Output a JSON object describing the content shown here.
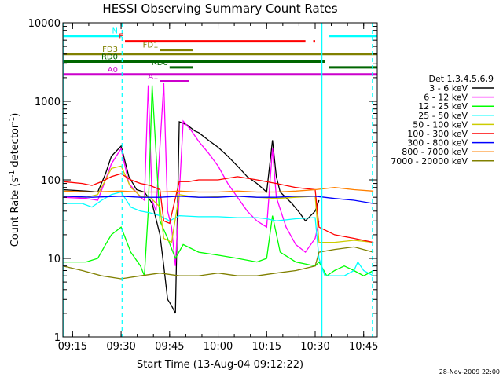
{
  "chart_data": {
    "type": "line",
    "title": "HESSI Observing Summary Count Rates",
    "xlabel": "Start Time (13-Aug-04 09:12:22)",
    "ylabel_main": "Count Rate (s",
    "ylabel_sup1": "-1",
    "ylabel_mid": " detector",
    "ylabel_sup2": "-1",
    "ylabel_end": ")",
    "x_range_minutes": [
      9.2,
      10.82
    ],
    "y_scale": "log",
    "ylim": [
      1,
      10000
    ],
    "x_ticks": [
      {
        "t": 9.25,
        "label": "09:15"
      },
      {
        "t": 9.5,
        "label": "09:30"
      },
      {
        "t": 9.75,
        "label": "09:45"
      },
      {
        "t": 10.0,
        "label": "10:00"
      },
      {
        "t": 10.25,
        "label": "10:15"
      },
      {
        "t": 10.5,
        "label": "10:30"
      },
      {
        "t": 10.75,
        "label": "10:45"
      }
    ],
    "y_ticks": [
      {
        "v": 1,
        "label": "1"
      },
      {
        "v": 10,
        "label": "10"
      },
      {
        "v": 100,
        "label": "100"
      },
      {
        "v": 1000,
        "label": "1000"
      },
      {
        "v": 10000,
        "label": "10000"
      }
    ],
    "legend_title": "Det 1,3,4,5,6,9",
    "legend_position": "right",
    "series": [
      {
        "name": "3 - 6 keV",
        "color": "#000000",
        "x": [
          9.2,
          9.32,
          9.38,
          9.42,
          9.45,
          9.5,
          9.54,
          9.58,
          9.62,
          9.64,
          9.66,
          9.7,
          9.72,
          9.74,
          9.76,
          9.78,
          9.8,
          9.84,
          9.88,
          9.9,
          9.95,
          10.0,
          10.05,
          10.1,
          10.15,
          10.2,
          10.25,
          10.28,
          10.3,
          10.32,
          10.38,
          10.42,
          10.45,
          10.5,
          10.52
        ],
        "y": [
          75,
          72,
          70,
          120,
          200,
          270,
          110,
          75,
          70,
          60,
          50,
          20,
          8,
          3,
          2.5,
          2,
          550,
          500,
          420,
          400,
          320,
          260,
          200,
          150,
          110,
          90,
          70,
          320,
          110,
          70,
          50,
          38,
          30,
          40,
          55
        ]
      },
      {
        "name": "6 - 12 keV",
        "color": "#ff00ff",
        "x": [
          9.2,
          9.32,
          9.38,
          9.42,
          9.45,
          9.5,
          9.54,
          9.6,
          9.62,
          9.64,
          9.66,
          9.68,
          9.72,
          9.74,
          9.76,
          9.78,
          9.82,
          9.86,
          9.9,
          9.95,
          10.0,
          10.05,
          10.1,
          10.15,
          10.2,
          10.25,
          10.28,
          10.3,
          10.35,
          10.4,
          10.45,
          10.5,
          10.52
        ],
        "y": [
          60,
          58,
          55,
          100,
          160,
          250,
          90,
          60,
          55,
          1600,
          55,
          40,
          1700,
          40,
          25,
          8,
          560,
          430,
          310,
          220,
          150,
          90,
          60,
          40,
          30,
          25,
          250,
          60,
          25,
          15,
          12,
          18,
          30
        ]
      },
      {
        "name": "12 - 25 keV",
        "color": "#00ff00",
        "x": [
          9.2,
          9.32,
          9.38,
          9.42,
          9.45,
          9.5,
          9.55,
          9.6,
          9.62,
          9.64,
          9.66,
          9.7,
          9.74,
          9.78,
          9.82,
          9.9,
          10.0,
          10.1,
          10.2,
          10.25,
          10.28,
          10.32,
          10.4,
          10.5,
          10.52,
          10.56,
          10.6,
          10.65,
          10.7,
          10.75,
          10.8
        ],
        "y": [
          9,
          9,
          10,
          15,
          20,
          25,
          12,
          8,
          6,
          40,
          1600,
          30,
          18,
          10,
          15,
          12,
          11,
          10,
          9,
          10,
          35,
          12,
          9,
          8,
          9,
          6,
          7,
          8,
          7,
          6,
          7
        ]
      },
      {
        "name": "25 - 50 keV",
        "color": "#00ffff",
        "x": [
          9.2,
          9.3,
          9.35,
          9.4,
          9.45,
          9.5,
          9.55,
          9.6,
          9.65,
          9.7,
          9.75,
          9.8,
          9.9,
          10.0,
          10.1,
          10.2,
          10.25,
          10.3,
          10.4,
          10.5,
          10.52,
          10.55,
          10.6,
          10.65,
          10.7,
          10.72,
          10.75,
          10.8
        ],
        "y": [
          50,
          50,
          45,
          55,
          65,
          70,
          45,
          40,
          38,
          35,
          30,
          35,
          34,
          34,
          33,
          33,
          32,
          30,
          32,
          33,
          10,
          6,
          6,
          6,
          7,
          9,
          7,
          6
        ]
      },
      {
        "name": "50 - 100 keV",
        "color": "#cccc00",
        "x": [
          9.2,
          9.32,
          9.38,
          9.42,
          9.45,
          9.5,
          9.55,
          9.6,
          9.65,
          9.7,
          9.72,
          9.76,
          9.8,
          9.85,
          9.9,
          10.0,
          10.1,
          10.2,
          10.3,
          10.4,
          10.5,
          10.52,
          10.6,
          10.7,
          10.8
        ],
        "y": [
          62,
          60,
          65,
          100,
          140,
          150,
          80,
          62,
          60,
          45,
          18,
          16,
          65,
          62,
          60,
          61,
          62,
          60,
          58,
          60,
          62,
          16,
          16,
          17,
          16
        ]
      },
      {
        "name": "100 - 300 keV",
        "color": "#ff0000",
        "x": [
          9.2,
          9.3,
          9.35,
          9.4,
          9.45,
          9.5,
          9.55,
          9.6,
          9.65,
          9.7,
          9.72,
          9.75,
          9.8,
          9.85,
          9.9,
          10.0,
          10.1,
          10.2,
          10.3,
          10.4,
          10.5,
          10.52,
          10.6,
          10.7,
          10.8
        ],
        "y": [
          95,
          90,
          85,
          95,
          110,
          120,
          100,
          90,
          85,
          75,
          30,
          28,
          95,
          95,
          100,
          100,
          110,
          100,
          90,
          80,
          75,
          25,
          20,
          18,
          16
        ]
      },
      {
        "name": "300 - 800 keV",
        "color": "#0000ff",
        "x": [
          9.2,
          9.35,
          9.5,
          9.6,
          9.7,
          9.8,
          9.9,
          10.0,
          10.1,
          10.2,
          10.3,
          10.4,
          10.5,
          10.6,
          10.7,
          10.8
        ],
        "y": [
          62,
          60,
          62,
          60,
          60,
          62,
          60,
          60,
          62,
          60,
          60,
          62,
          62,
          58,
          55,
          50
        ]
      },
      {
        "name": "800 - 7000 keV",
        "color": "#ff8000",
        "x": [
          9.2,
          9.35,
          9.5,
          9.6,
          9.7,
          9.8,
          9.9,
          10.0,
          10.1,
          10.2,
          10.3,
          10.4,
          10.5,
          10.6,
          10.7,
          10.8
        ],
        "y": [
          72,
          70,
          72,
          70,
          70,
          72,
          70,
          70,
          72,
          70,
          70,
          72,
          75,
          80,
          75,
          72
        ]
      },
      {
        "name": "7000 - 20000 keV",
        "color": "#808000",
        "x": [
          9.2,
          9.3,
          9.4,
          9.5,
          9.6,
          9.7,
          9.8,
          9.9,
          10.0,
          10.1,
          10.2,
          10.3,
          10.4,
          10.5,
          10.52,
          10.6,
          10.7,
          10.8
        ],
        "y": [
          8,
          7,
          6,
          5.5,
          6,
          6.5,
          6,
          6,
          6.5,
          6,
          6,
          6.5,
          7,
          8,
          12,
          13,
          14,
          12
        ]
      }
    ],
    "flags": [
      {
        "label": "N",
        "color": "#00ffff",
        "y": 6800,
        "segments": [
          [
            9.2,
            9.505
          ],
          [
            10.57,
            10.82
          ]
        ]
      },
      {
        "label": "F",
        "color": "#ff0000",
        "y": 5800,
        "segments": [
          [
            9.52,
            10.45
          ],
          [
            10.49,
            10.5
          ]
        ]
      },
      {
        "label": "FD1",
        "color": "#808000",
        "y": 4500,
        "segments": [
          [
            9.7,
            9.87
          ]
        ]
      },
      {
        "label": "FD3",
        "color": "#808000",
        "y": 4000,
        "segments": [
          [
            9.2,
            10.82
          ]
        ]
      },
      {
        "label": "RD0",
        "color": "#006600",
        "y": 3200,
        "segments": [
          [
            9.2,
            10.55
          ]
        ]
      },
      {
        "label": "RD6",
        "color": "#006600",
        "y": 2700,
        "segments": [
          [
            9.75,
            9.87
          ],
          [
            10.57,
            10.82
          ]
        ]
      },
      {
        "label": "A0",
        "color": "#cc00cc",
        "y": 2200,
        "segments": [
          [
            9.2,
            10.82
          ]
        ]
      },
      {
        "label": "A1",
        "color": "#cc00cc",
        "y": 1800,
        "segments": [
          [
            9.7,
            9.85
          ]
        ]
      }
    ],
    "vlines": [
      {
        "t": 9.205,
        "color": "#00ffff",
        "style": "solid"
      },
      {
        "t": 9.505,
        "color": "#00ffff",
        "style": "dashed"
      },
      {
        "t": 10.535,
        "color": "#00ffff",
        "style": "solid"
      },
      {
        "t": 10.795,
        "color": "#00ffff",
        "style": "dashed"
      }
    ]
  },
  "timestamp": "28-Nov-2009 22:00"
}
